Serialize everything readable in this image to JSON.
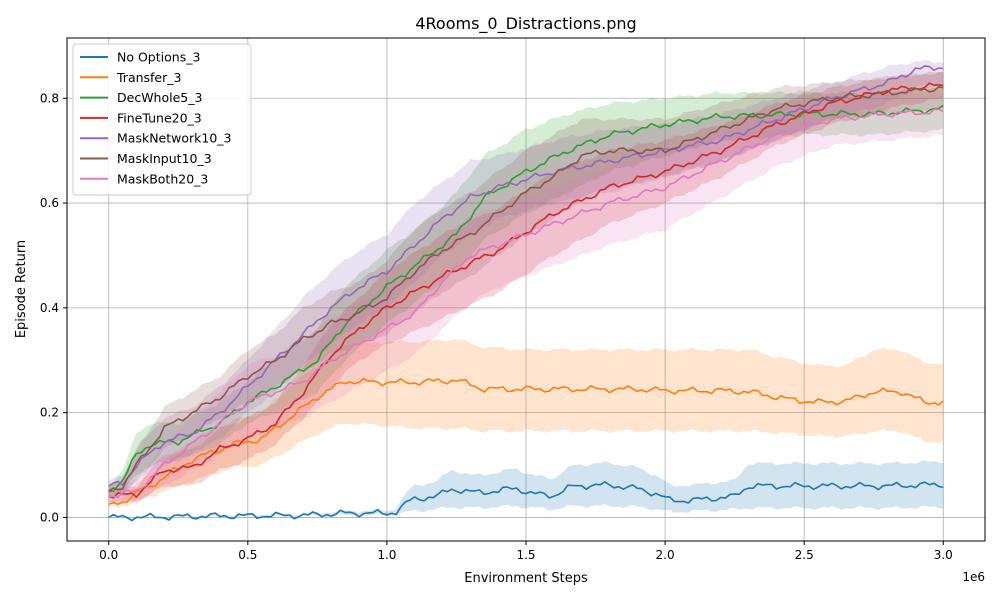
{
  "chart_data": {
    "type": "line",
    "title": "4Rooms_0_Distractions.png",
    "xlabel": "Environment Steps",
    "ylabel": "Episode Return",
    "x_offset_label": "1e6",
    "xlim": [
      -0.15,
      3.15
    ],
    "ylim": [
      -0.045,
      0.915
    ],
    "x_ticks": [
      0.0,
      0.5,
      1.0,
      1.5,
      2.0,
      2.5,
      3.0
    ],
    "x_tick_labels": [
      "0.0",
      "0.5",
      "1.0",
      "1.5",
      "2.0",
      "2.5",
      "3.0"
    ],
    "y_ticks": [
      0.0,
      0.2,
      0.4,
      0.6,
      0.8
    ],
    "y_tick_labels": [
      "0.0",
      "0.2",
      "0.4",
      "0.6",
      "0.8"
    ],
    "grid": true,
    "legend_position": "top-left",
    "series": [
      {
        "name": "No Options_3",
        "color": "#1f77b4",
        "x": [
          0,
          0.2,
          0.4,
          0.5,
          0.7,
          0.85,
          1.0,
          1.03,
          1.09,
          1.18,
          1.23,
          1.3,
          1.4,
          1.46,
          1.52,
          1.6,
          1.67,
          1.8,
          1.9,
          1.97,
          2.02,
          2.1,
          2.25,
          2.3,
          2.6,
          2.8,
          3.0
        ],
        "mean": [
          0.0,
          0.001,
          0.003,
          0.003,
          0.004,
          0.008,
          0.008,
          0.01,
          0.035,
          0.04,
          0.055,
          0.048,
          0.05,
          0.057,
          0.045,
          0.042,
          0.06,
          0.062,
          0.055,
          0.045,
          0.032,
          0.033,
          0.04,
          0.06,
          0.06,
          0.06,
          0.063
        ],
        "lower": [
          0.0,
          0.0,
          0.001,
          0.001,
          0.002,
          0.004,
          0.004,
          0.005,
          0.012,
          0.015,
          0.02,
          0.018,
          0.02,
          0.022,
          0.018,
          0.016,
          0.022,
          0.022,
          0.02,
          0.016,
          0.01,
          0.012,
          0.015,
          0.018,
          0.018,
          0.018,
          0.02
        ],
        "upper": [
          0.002,
          0.003,
          0.005,
          0.006,
          0.007,
          0.012,
          0.013,
          0.016,
          0.06,
          0.068,
          0.092,
          0.08,
          0.085,
          0.095,
          0.08,
          0.075,
          0.1,
          0.104,
          0.095,
          0.08,
          0.06,
          0.062,
          0.07,
          0.103,
          0.103,
          0.103,
          0.107
        ]
      },
      {
        "name": "Transfer_3",
        "color": "#ff7f0e",
        "x": [
          0,
          0.05,
          0.15,
          0.3,
          0.45,
          0.55,
          0.65,
          0.75,
          0.85,
          1.0,
          1.1,
          1.25,
          1.35,
          1.5,
          1.75,
          1.9,
          2.0,
          2.2,
          2.3,
          2.45,
          2.55,
          2.65,
          2.75,
          2.85,
          2.93,
          3.0
        ],
        "mean": [
          0.025,
          0.03,
          0.06,
          0.11,
          0.14,
          0.15,
          0.19,
          0.23,
          0.26,
          0.258,
          0.258,
          0.262,
          0.245,
          0.245,
          0.245,
          0.245,
          0.242,
          0.242,
          0.24,
          0.225,
          0.22,
          0.222,
          0.24,
          0.24,
          0.22,
          0.22
        ],
        "lower": [
          0.02,
          0.022,
          0.04,
          0.07,
          0.095,
          0.1,
          0.13,
          0.16,
          0.18,
          0.175,
          0.17,
          0.17,
          0.165,
          0.165,
          0.165,
          0.165,
          0.165,
          0.165,
          0.165,
          0.16,
          0.155,
          0.155,
          0.165,
          0.165,
          0.145,
          0.145
        ],
        "upper": [
          0.03,
          0.04,
          0.085,
          0.15,
          0.185,
          0.2,
          0.25,
          0.29,
          0.33,
          0.335,
          0.335,
          0.34,
          0.325,
          0.32,
          0.32,
          0.32,
          0.32,
          0.32,
          0.32,
          0.3,
          0.29,
          0.29,
          0.32,
          0.32,
          0.295,
          0.295
        ]
      },
      {
        "name": "DecWhole5_3",
        "color": "#2ca02c",
        "x": [
          0,
          0.05,
          0.1,
          0.15,
          0.25,
          0.4,
          0.5,
          0.6,
          0.75,
          0.85,
          1.0,
          1.15,
          1.25,
          1.35,
          1.5,
          1.65,
          1.8,
          2.0,
          2.2,
          2.5,
          2.75,
          3.0
        ],
        "mean": [
          0.05,
          0.07,
          0.12,
          0.14,
          0.145,
          0.18,
          0.22,
          0.25,
          0.3,
          0.37,
          0.44,
          0.5,
          0.54,
          0.61,
          0.66,
          0.7,
          0.73,
          0.75,
          0.765,
          0.77,
          0.77,
          0.78
        ],
        "lower": [
          0.04,
          0.05,
          0.08,
          0.1,
          0.11,
          0.14,
          0.18,
          0.2,
          0.24,
          0.3,
          0.37,
          0.43,
          0.47,
          0.53,
          0.58,
          0.62,
          0.66,
          0.69,
          0.72,
          0.73,
          0.73,
          0.74
        ],
        "upper": [
          0.06,
          0.09,
          0.16,
          0.18,
          0.18,
          0.22,
          0.26,
          0.3,
          0.36,
          0.44,
          0.51,
          0.57,
          0.62,
          0.69,
          0.74,
          0.77,
          0.79,
          0.8,
          0.81,
          0.81,
          0.81,
          0.82
        ]
      },
      {
        "name": "FineTune20_3",
        "color": "#d62728",
        "x": [
          0,
          0.1,
          0.2,
          0.3,
          0.4,
          0.5,
          0.6,
          0.7,
          0.8,
          0.9,
          1.0,
          1.2,
          1.4,
          1.6,
          1.8,
          2.0,
          2.2,
          2.4,
          2.6,
          2.8,
          3.0
        ],
        "mean": [
          0.04,
          0.045,
          0.09,
          0.095,
          0.13,
          0.15,
          0.18,
          0.24,
          0.31,
          0.36,
          0.4,
          0.46,
          0.51,
          0.58,
          0.63,
          0.66,
          0.7,
          0.75,
          0.79,
          0.815,
          0.825
        ],
        "lower": [
          0.03,
          0.03,
          0.06,
          0.06,
          0.09,
          0.11,
          0.14,
          0.19,
          0.25,
          0.3,
          0.33,
          0.38,
          0.43,
          0.5,
          0.56,
          0.6,
          0.65,
          0.71,
          0.75,
          0.78,
          0.8
        ],
        "upper": [
          0.05,
          0.06,
          0.12,
          0.13,
          0.17,
          0.19,
          0.22,
          0.29,
          0.37,
          0.42,
          0.47,
          0.54,
          0.59,
          0.66,
          0.7,
          0.72,
          0.75,
          0.79,
          0.82,
          0.84,
          0.85
        ]
      },
      {
        "name": "MaskNetwork10_3",
        "color": "#9467bd",
        "x": [
          0,
          0.05,
          0.1,
          0.2,
          0.3,
          0.4,
          0.5,
          0.6,
          0.7,
          0.8,
          0.9,
          1.0,
          1.1,
          1.2,
          1.3,
          1.4,
          1.6,
          1.8,
          2.0,
          2.2,
          2.4,
          2.6,
          2.8,
          2.9,
          3.0
        ],
        "mean": [
          0.06,
          0.065,
          0.1,
          0.145,
          0.16,
          0.2,
          0.25,
          0.3,
          0.35,
          0.4,
          0.44,
          0.47,
          0.52,
          0.57,
          0.61,
          0.63,
          0.66,
          0.68,
          0.7,
          0.72,
          0.76,
          0.8,
          0.83,
          0.855,
          0.86
        ],
        "lower": [
          0.05,
          0.05,
          0.07,
          0.1,
          0.12,
          0.15,
          0.2,
          0.24,
          0.29,
          0.33,
          0.37,
          0.4,
          0.45,
          0.5,
          0.54,
          0.57,
          0.6,
          0.62,
          0.65,
          0.68,
          0.72,
          0.76,
          0.79,
          0.82,
          0.83
        ],
        "upper": [
          0.07,
          0.08,
          0.13,
          0.19,
          0.21,
          0.25,
          0.3,
          0.36,
          0.42,
          0.47,
          0.51,
          0.54,
          0.6,
          0.64,
          0.68,
          0.69,
          0.72,
          0.74,
          0.75,
          0.77,
          0.8,
          0.83,
          0.86,
          0.87,
          0.87
        ]
      },
      {
        "name": "MaskInput10_3",
        "color": "#8c564b",
        "x": [
          0,
          0.05,
          0.1,
          0.2,
          0.3,
          0.4,
          0.5,
          0.6,
          0.7,
          0.8,
          0.9,
          1.0,
          1.1,
          1.2,
          1.3,
          1.4,
          1.5,
          1.6,
          1.7,
          1.8,
          2.0,
          2.2,
          2.4,
          2.6,
          2.8,
          3.0
        ],
        "mean": [
          0.05,
          0.06,
          0.1,
          0.17,
          0.2,
          0.23,
          0.27,
          0.3,
          0.34,
          0.37,
          0.39,
          0.42,
          0.47,
          0.51,
          0.54,
          0.58,
          0.62,
          0.65,
          0.69,
          0.7,
          0.7,
          0.74,
          0.78,
          0.8,
          0.81,
          0.82
        ],
        "lower": [
          0.04,
          0.045,
          0.07,
          0.13,
          0.16,
          0.19,
          0.22,
          0.25,
          0.28,
          0.31,
          0.33,
          0.35,
          0.39,
          0.43,
          0.46,
          0.5,
          0.54,
          0.57,
          0.61,
          0.63,
          0.65,
          0.68,
          0.72,
          0.76,
          0.77,
          0.78
        ],
        "upper": [
          0.06,
          0.075,
          0.13,
          0.21,
          0.24,
          0.27,
          0.32,
          0.35,
          0.4,
          0.43,
          0.45,
          0.49,
          0.55,
          0.59,
          0.62,
          0.66,
          0.7,
          0.73,
          0.76,
          0.76,
          0.76,
          0.79,
          0.82,
          0.83,
          0.84,
          0.85
        ]
      },
      {
        "name": "MaskBoth20_3",
        "color": "#e377c2",
        "x": [
          0,
          0.1,
          0.2,
          0.3,
          0.4,
          0.5,
          0.6,
          0.7,
          0.8,
          0.9,
          1.0,
          1.1,
          1.2,
          1.3,
          1.4,
          1.5,
          1.6,
          1.7,
          1.8,
          2.0,
          2.2,
          2.4,
          2.6,
          2.8,
          3.0
        ],
        "mean": [
          0.04,
          0.05,
          0.1,
          0.14,
          0.18,
          0.22,
          0.24,
          0.26,
          0.3,
          0.33,
          0.36,
          0.39,
          0.45,
          0.5,
          0.52,
          0.54,
          0.56,
          0.58,
          0.6,
          0.63,
          0.68,
          0.73,
          0.76,
          0.77,
          0.775
        ],
        "lower": [
          0.03,
          0.03,
          0.06,
          0.09,
          0.12,
          0.15,
          0.17,
          0.19,
          0.22,
          0.25,
          0.28,
          0.31,
          0.36,
          0.41,
          0.44,
          0.46,
          0.48,
          0.5,
          0.52,
          0.55,
          0.61,
          0.67,
          0.71,
          0.72,
          0.73
        ],
        "upper": [
          0.05,
          0.07,
          0.14,
          0.19,
          0.24,
          0.29,
          0.31,
          0.34,
          0.38,
          0.41,
          0.44,
          0.47,
          0.53,
          0.58,
          0.59,
          0.61,
          0.63,
          0.65,
          0.67,
          0.7,
          0.74,
          0.78,
          0.8,
          0.81,
          0.81
        ]
      }
    ]
  }
}
